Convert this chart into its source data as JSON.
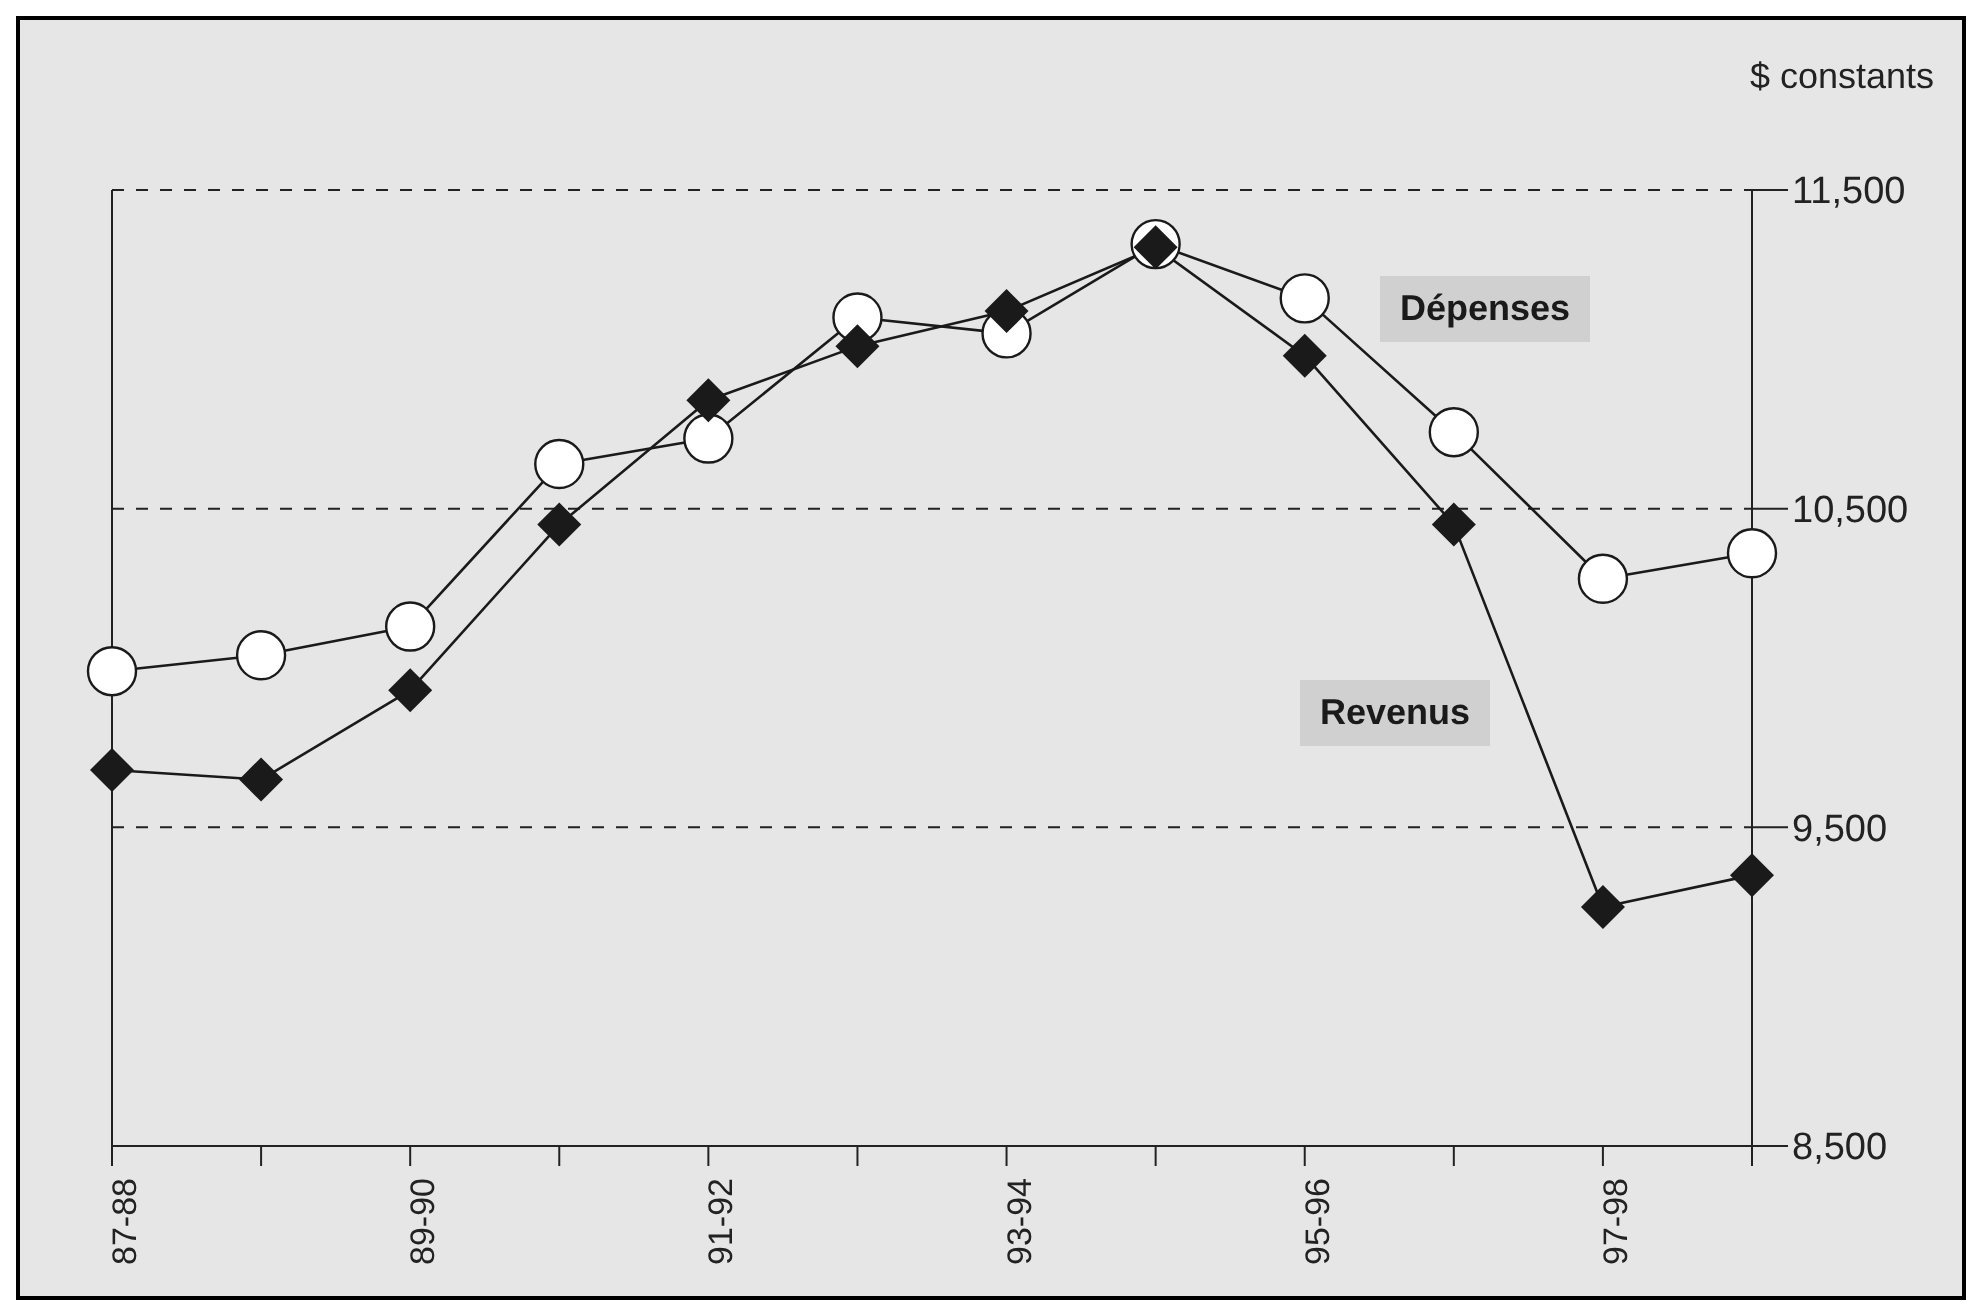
{
  "chart_data": {
    "type": "line",
    "ylabel": "$ constants",
    "categories": [
      "87-88",
      null,
      "89-90",
      null,
      "91-92",
      null,
      "93-94",
      null,
      "95-96",
      null,
      "97-98",
      null
    ],
    "series": [
      {
        "name": "Dépenses",
        "color": "#1a1a1a",
        "marker": "circle",
        "values": [
          9990,
          10040,
          10130,
          10640,
          10720,
          11100,
          11050,
          11330,
          11160,
          10740,
          10280,
          10360
        ]
      },
      {
        "name": "Revenus",
        "color": "#1a1a1a",
        "marker": "diamond",
        "values": [
          9680,
          9650,
          9930,
          10450,
          10840,
          11010,
          11120,
          11320,
          10980,
          10450,
          9250,
          9350
        ]
      }
    ],
    "ylim": [
      8500,
      11500
    ],
    "yticks": [
      {
        "value": 8500,
        "label": "8,500"
      },
      {
        "value": 9500,
        "label": "9,500"
      },
      {
        "value": 10500,
        "label": "10,500"
      },
      {
        "value": 11500,
        "label": "11,500"
      }
    ],
    "grid": "y"
  }
}
